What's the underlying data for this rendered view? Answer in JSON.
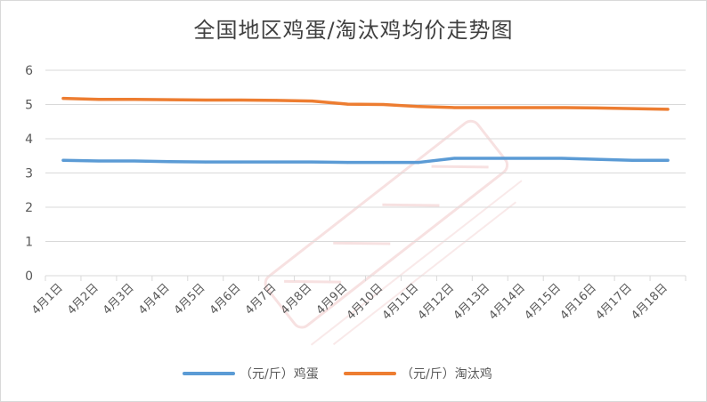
{
  "chart_data": {
    "type": "line",
    "title": "全国地区鸡蛋/淘汰鸡均价走势图",
    "categories": [
      "4月1日",
      "4月2日",
      "4月3日",
      "4月4日",
      "4月5日",
      "4月6日",
      "4月7日",
      "4月8日",
      "4月9日",
      "4月10日",
      "4月11日",
      "4月12日",
      "4月13日",
      "4月14日",
      "4月15日",
      "4月16日",
      "4月17日",
      "4月18日"
    ],
    "series": [
      {
        "name": "（元/斤）鸡蛋",
        "color": "#5b9bd5",
        "values": [
          3.37,
          3.35,
          3.35,
          3.33,
          3.32,
          3.32,
          3.32,
          3.32,
          3.31,
          3.31,
          3.31,
          3.43,
          3.43,
          3.43,
          3.43,
          3.4,
          3.37,
          3.37
        ]
      },
      {
        "name": "（元/斤）淘汰鸡",
        "color": "#ed7d31",
        "values": [
          5.18,
          5.15,
          5.15,
          5.14,
          5.13,
          5.13,
          5.12,
          5.1,
          5.01,
          5.0,
          4.94,
          4.91,
          4.91,
          4.91,
          4.91,
          4.9,
          4.88,
          4.86
        ]
      }
    ],
    "yticks": [
      "0",
      "1",
      "2",
      "3",
      "4",
      "5",
      "6"
    ],
    "ylim": [
      0,
      6
    ],
    "grid": true,
    "legend": "bottom"
  }
}
